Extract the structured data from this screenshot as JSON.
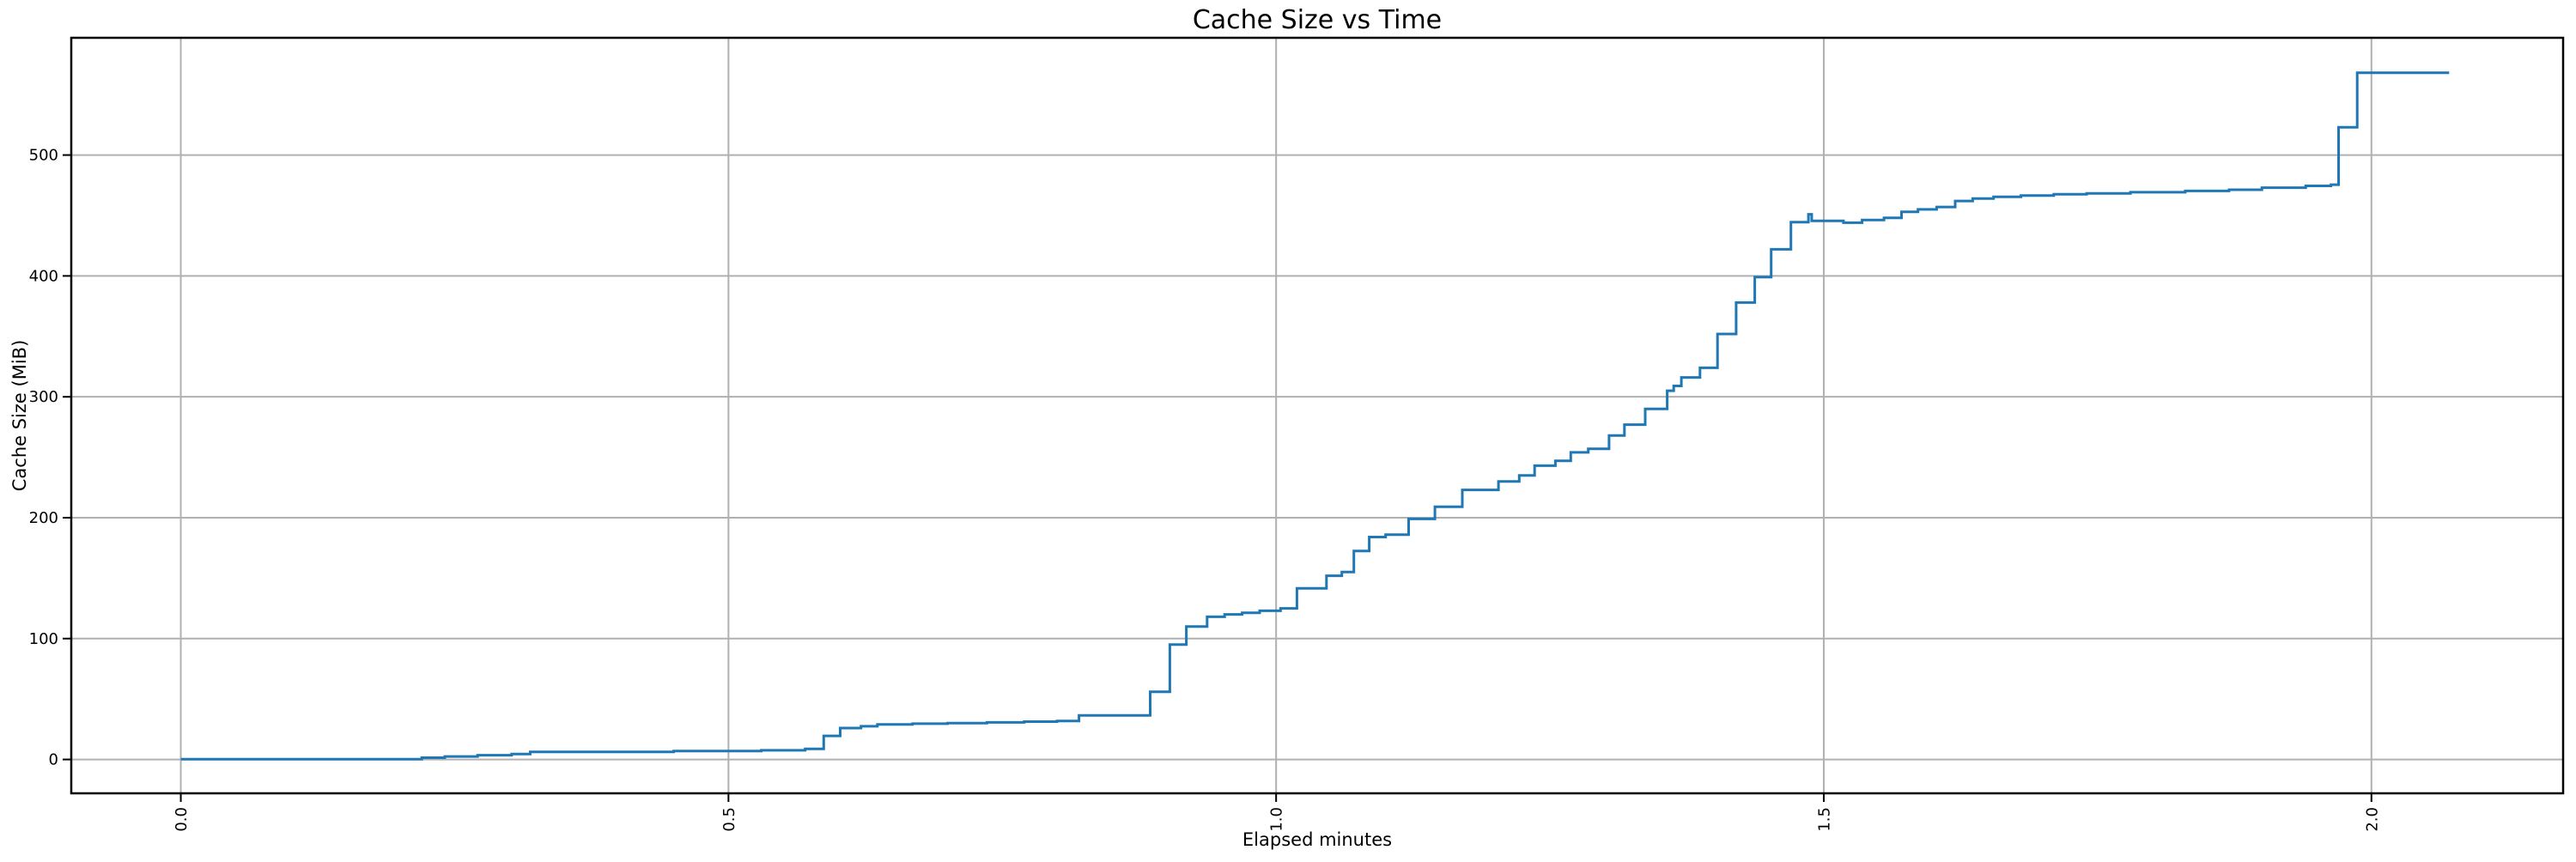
{
  "chart_data": {
    "type": "line",
    "interpolation": "step-after",
    "title": "Cache Size vs Time",
    "xlabel": "Elapsed minutes",
    "ylabel": "Cache Size (MiB)",
    "xlim": [
      -0.1,
      2.175
    ],
    "ylim": [
      -28,
      597
    ],
    "x_ticks": [
      0.0,
      0.5,
      1.0,
      1.5,
      2.0
    ],
    "x_tick_labels": [
      "0.0",
      "0.5",
      "1.0",
      "1.5",
      "2.0"
    ],
    "x_tick_rotation_deg": 90,
    "y_ticks": [
      0,
      100,
      200,
      300,
      400,
      500
    ],
    "y_tick_labels": [
      "0",
      "100",
      "200",
      "300",
      "400",
      "500"
    ],
    "grid": true,
    "legend": "none",
    "colors": {
      "line": "#1f77b4",
      "grid": "#b0b0b0",
      "spine": "#000000",
      "text": "#000000",
      "background": "#ffffff"
    },
    "points": [
      [
        0.0,
        0.3
      ],
      [
        0.22,
        1.5
      ],
      [
        0.241,
        2.5
      ],
      [
        0.271,
        3.5
      ],
      [
        0.302,
        4.5
      ],
      [
        0.319,
        6.3
      ],
      [
        0.45,
        7.0
      ],
      [
        0.53,
        7.6
      ],
      [
        0.57,
        8.7
      ],
      [
        0.587,
        19.5
      ],
      [
        0.602,
        26.0
      ],
      [
        0.621,
        27.5
      ],
      [
        0.636,
        29.0
      ],
      [
        0.668,
        29.6
      ],
      [
        0.7,
        30.1
      ],
      [
        0.736,
        30.7
      ],
      [
        0.77,
        31.3
      ],
      [
        0.8,
        31.8
      ],
      [
        0.82,
        36.4
      ],
      [
        0.885,
        56.0
      ],
      [
        0.903,
        95.0
      ],
      [
        0.918,
        110.0
      ],
      [
        0.937,
        118.0
      ],
      [
        0.953,
        120.0
      ],
      [
        0.969,
        121.3
      ],
      [
        0.985,
        123.0
      ],
      [
        1.004,
        125.0
      ],
      [
        1.019,
        141.5
      ],
      [
        1.046,
        152.0
      ],
      [
        1.06,
        155.0
      ],
      [
        1.071,
        172.5
      ],
      [
        1.085,
        184.0
      ],
      [
        1.1,
        186.0
      ],
      [
        1.121,
        199.0
      ],
      [
        1.145,
        209.0
      ],
      [
        1.17,
        223.0
      ],
      [
        1.203,
        230.0
      ],
      [
        1.222,
        235.0
      ],
      [
        1.236,
        243.0
      ],
      [
        1.255,
        247.0
      ],
      [
        1.269,
        254.0
      ],
      [
        1.285,
        257.0
      ],
      [
        1.304,
        268.0
      ],
      [
        1.318,
        277.0
      ],
      [
        1.337,
        290.0
      ],
      [
        1.357,
        305.0
      ],
      [
        1.363,
        309.0
      ],
      [
        1.37,
        316.0
      ],
      [
        1.387,
        324.0
      ],
      [
        1.403,
        352.0
      ],
      [
        1.42,
        378.0
      ],
      [
        1.437,
        399.0
      ],
      [
        1.452,
        422.0
      ],
      [
        1.47,
        444.5
      ],
      [
        1.486,
        451.0
      ],
      [
        1.489,
        445.5
      ],
      [
        1.518,
        444.0
      ],
      [
        1.535,
        446.2
      ],
      [
        1.555,
        448.0
      ],
      [
        1.571,
        453.0
      ],
      [
        1.586,
        455.0
      ],
      [
        1.603,
        457.0
      ],
      [
        1.62,
        462.0
      ],
      [
        1.636,
        464.0
      ],
      [
        1.655,
        465.5
      ],
      [
        1.68,
        466.5
      ],
      [
        1.71,
        467.5
      ],
      [
        1.74,
        468.3
      ],
      [
        1.78,
        469.2
      ],
      [
        1.83,
        470.3
      ],
      [
        1.87,
        471.3
      ],
      [
        1.9,
        473.0
      ],
      [
        1.94,
        474.5
      ],
      [
        1.963,
        475.5
      ],
      [
        1.97,
        523.0
      ],
      [
        1.987,
        568.0
      ],
      [
        2.071,
        568.0
      ]
    ]
  }
}
